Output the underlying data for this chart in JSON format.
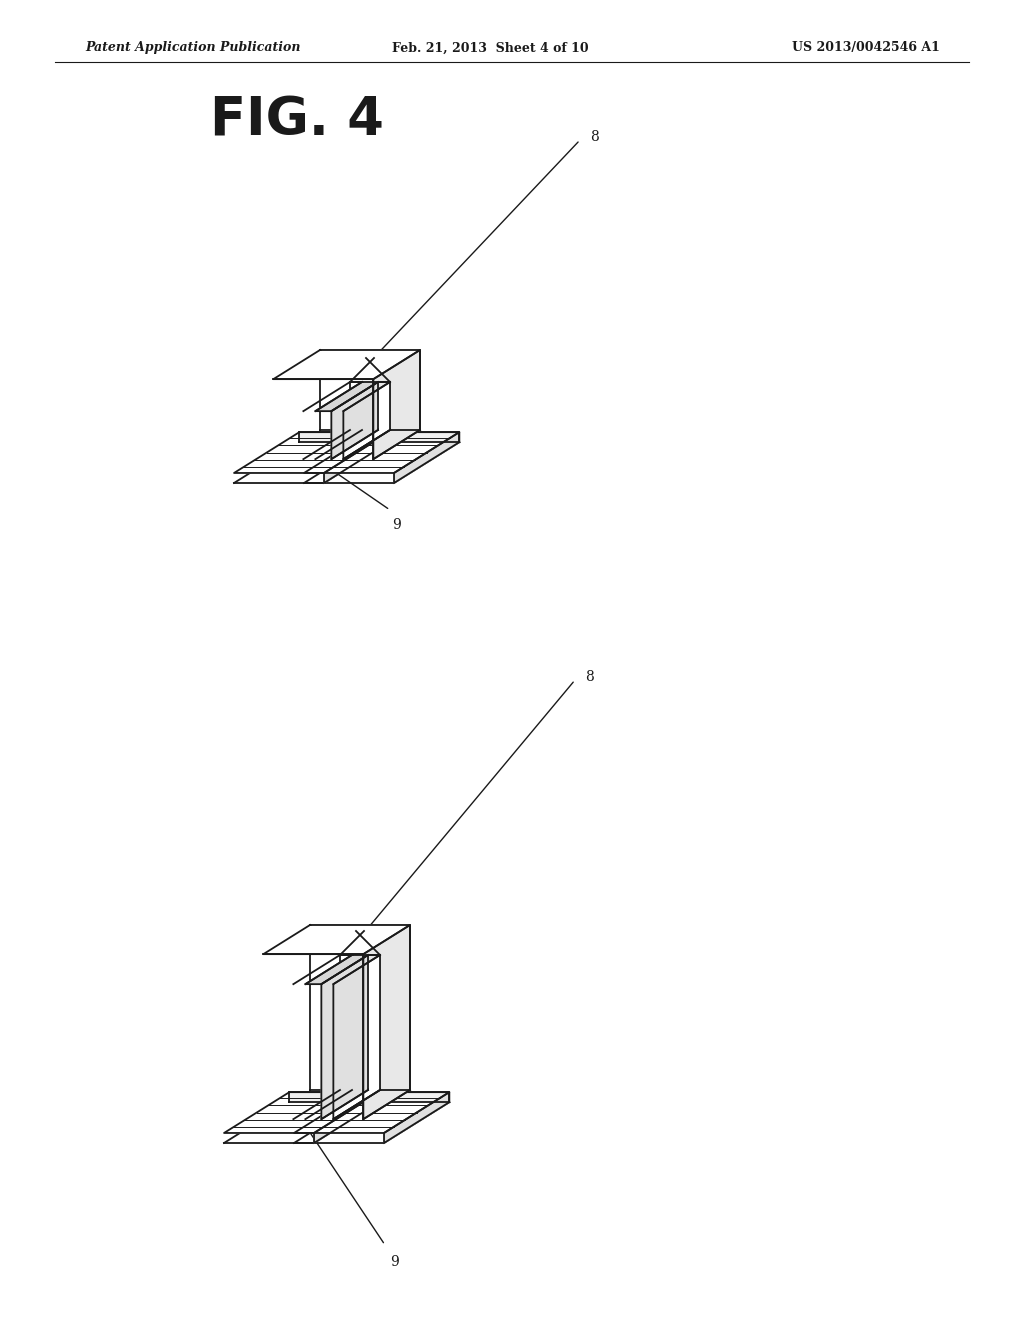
{
  "bg_color": "#ffffff",
  "line_color": "#1a1a1a",
  "line_width": 1.3,
  "header_left": "Patent Application Publication",
  "header_center": "Feb. 21, 2013  Sheet 4 of 10",
  "header_right": "US 2013/0042546 A1",
  "fig_label": "FIG. 4",
  "label_8": "8",
  "label_9": "9"
}
